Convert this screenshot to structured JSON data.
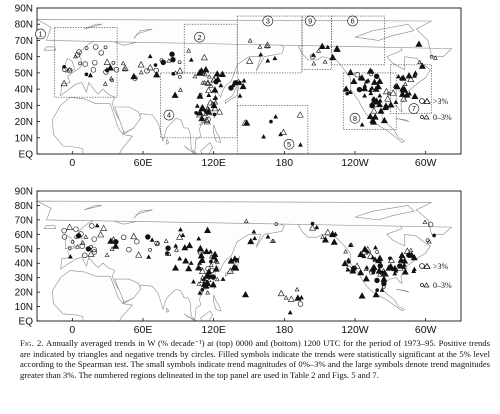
{
  "panels": [
    {
      "id": "top",
      "y_ticks": [
        "90N",
        "80N",
        "70N",
        "60N",
        "50N",
        "40N",
        "30N",
        "20N",
        "10N",
        "EQ"
      ],
      "x_ticks": [
        "0",
        "60E",
        "120E",
        "180",
        "120W",
        "60W"
      ],
      "legend": [
        {
          "symbols": "○△",
          "text": ">3%"
        },
        {
          "symbols": "○△",
          "text": "0–3%"
        }
      ],
      "region_numbers": [
        "1",
        "2",
        "3",
        "4",
        "5",
        "6",
        "7",
        "8",
        "9"
      ]
    },
    {
      "id": "bottom",
      "y_ticks": [
        "90N",
        "80N",
        "70N",
        "60N",
        "50N",
        "40N",
        "30N",
        "20N",
        "10N",
        "EQ"
      ],
      "x_ticks": [
        "0",
        "60E",
        "120E",
        "180",
        "120W",
        "60W"
      ],
      "legend": [
        {
          "symbols": "○△",
          "text": ">3%"
        },
        {
          "symbols": "○△",
          "text": "0–3%"
        }
      ]
    }
  ],
  "caption": {
    "label": "Fig. 2.",
    "text": "Annually averaged trends in W (% decade⁻¹) at (top) 0000 and (bottom) 1200 UTC for the period of 1973–95. Positive trends are indicated by triangles and negative trends by circles. Filled symbols indicate the trends were statistically significant at the 5% level according to the Spearman test. The small symbols indicate trend magnitudes of 0%–3% and the large symbols denote trend magnitudes greater than 3%. The numbered regions delineated in the top panel are used in Table 2 and Figs. 5 and 7."
  }
}
